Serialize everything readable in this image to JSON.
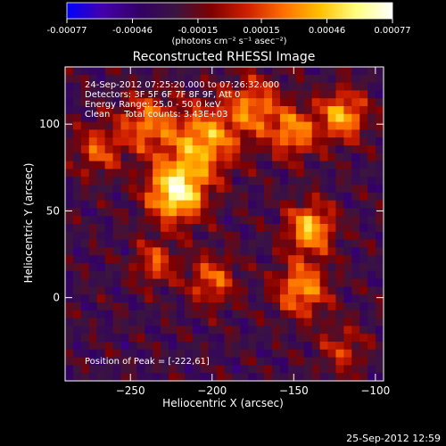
{
  "chart_data": {
    "type": "heatmap",
    "title": "Reconstructed RHESSI Image",
    "xlabel": "Heliocentric X (arcsec)",
    "ylabel": "Heliocentric Y (arcsec)",
    "xlim": [
      -290,
      -95
    ],
    "ylim": [
      -48,
      133
    ],
    "xticks": [
      -250,
      -200,
      -150,
      -100
    ],
    "yticks": [
      0,
      50,
      100
    ],
    "colorbar": {
      "range": [
        -0.00077,
        0.00077
      ],
      "tick_values": [
        -0.00077,
        -0.00046,
        -0.00015,
        0.00015,
        0.00046,
        0.00077
      ],
      "tick_labels": [
        "-0.00077",
        "-0.00046",
        "-0.00015",
        "0.00015",
        "0.00046",
        "0.00077"
      ],
      "unit_label": "(photons cm⁻² s⁻¹ asec⁻²)",
      "colors": [
        "#0000ff",
        "#4400aa",
        "#330066",
        "#3a1440",
        "#800000",
        "#d02000",
        "#ff7000",
        "#ffc000",
        "#ffff80",
        "#ffffff"
      ]
    },
    "annotations": [
      "24-Sep-2012 07:25:20.000 to 07:26:32.000",
      "Detectors: 3F 5F 6F 7F 8F 9F, Att 0",
      "Energy Range: 25.0 - 50.0 keV",
      "Clean     Total counts: 3.43E+03"
    ],
    "peak_label": "Position of Peak = [-222,61]",
    "peak": {
      "x": -222,
      "y": 61
    },
    "sources": [
      {
        "x": -222,
        "y": 61,
        "sigma": 12,
        "amplitude": 1.0
      },
      {
        "x": -205,
        "y": 90,
        "sigma": 14,
        "amplitude": 0.7
      },
      {
        "x": -240,
        "y": 100,
        "sigma": 12,
        "amplitude": 0.55
      },
      {
        "x": -175,
        "y": 110,
        "sigma": 12,
        "amplitude": 0.55
      },
      {
        "x": -150,
        "y": 95,
        "sigma": 10,
        "amplitude": 0.6
      },
      {
        "x": -120,
        "y": 105,
        "sigma": 10,
        "amplitude": 0.7
      },
      {
        "x": -140,
        "y": 40,
        "sigma": 10,
        "amplitude": 0.75
      },
      {
        "x": -145,
        "y": 5,
        "sigma": 11,
        "amplitude": 0.65
      },
      {
        "x": -200,
        "y": 10,
        "sigma": 10,
        "amplitude": 0.5
      },
      {
        "x": -235,
        "y": 20,
        "sigma": 9,
        "amplitude": 0.45
      },
      {
        "x": -270,
        "y": 85,
        "sigma": 10,
        "amplitude": 0.45
      },
      {
        "x": -120,
        "y": -30,
        "sigma": 10,
        "amplitude": 0.35
      }
    ]
  },
  "footer": {
    "timestamp": "25-Sep-2012 12:59"
  }
}
